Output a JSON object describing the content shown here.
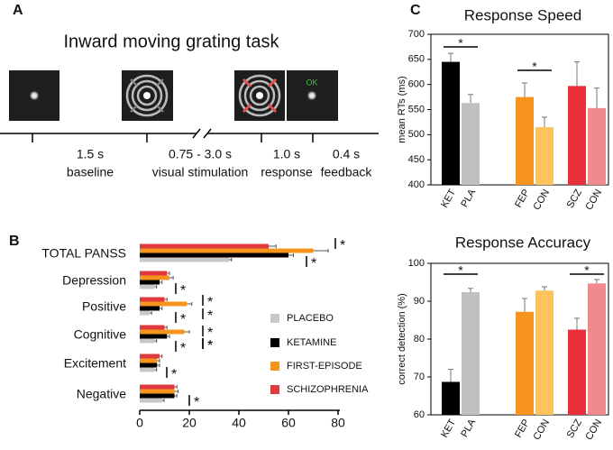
{
  "panel_labels": [
    "A",
    "B",
    "C"
  ],
  "timeline": {
    "title": "Inward moving grating task",
    "screen_text": "OK",
    "phases": [
      {
        "duration": "1.5 s",
        "label": "baseline"
      },
      {
        "duration": "0.75 - 3.0 s",
        "label": "visual stimulation"
      },
      {
        "duration": "1.0 s",
        "label": "response"
      },
      {
        "duration": "0.4 s",
        "label": "feedback"
      }
    ]
  },
  "chart_data": [
    {
      "type": "barh",
      "categories": [
        "TOTAL PANSS",
        "Depression",
        "Positive",
        "Cognitive",
        "Excitement",
        "Negative"
      ],
      "series": [
        {
          "name": "PLACEBO",
          "color": "#c8c8c8",
          "values": [
            36,
            6,
            4,
            6,
            6,
            9
          ],
          "errors": [
            1,
            0.8,
            0.8,
            0.8,
            0.8,
            0.8
          ]
        },
        {
          "name": "KETAMINE",
          "color": "#000000",
          "values": [
            60,
            8,
            8,
            11,
            7,
            14
          ],
          "errors": [
            2,
            1,
            1,
            1,
            1,
            1
          ]
        },
        {
          "name": "FIRST-EPISODE",
          "color": "#f7941d",
          "values": [
            70,
            12,
            19,
            18,
            7,
            14
          ],
          "errors": [
            6,
            1.5,
            2,
            2,
            1,
            1.5
          ]
        },
        {
          "name": "SCHIZOPHRENIA",
          "color": "#e03a3e",
          "values": [
            52,
            11,
            10,
            10,
            8,
            14
          ],
          "errors": [
            3,
            1,
            1,
            1,
            1,
            1
          ]
        }
      ],
      "xlim": [
        0,
        80
      ],
      "xticks": [
        0,
        20,
        40,
        60,
        80
      ],
      "annotations": [
        "*",
        "*",
        "*",
        "*",
        "*",
        "*",
        "*",
        "*",
        "*",
        "*",
        "*",
        "*"
      ]
    },
    {
      "type": "bar",
      "title": "Response Speed",
      "y_label": "mean RTs (ms)",
      "categories": [
        "KET",
        "PLA",
        "FEP",
        "CON",
        "SCZ",
        "CON"
      ],
      "values": [
        645,
        563,
        575,
        515,
        597,
        553
      ],
      "errors": [
        17,
        17,
        28,
        20,
        48,
        40
      ],
      "colors": [
        "#000000",
        "#c0c0c0",
        "#f7941d",
        "#fdc35c",
        "#e8303a",
        "#f08a8e"
      ],
      "ylim": [
        400,
        700
      ],
      "yticks": [
        400,
        450,
        500,
        550,
        600,
        650,
        700
      ],
      "annotations": [
        "*",
        "*"
      ]
    },
    {
      "type": "bar",
      "title": "Response Accuracy",
      "y_label": "correct detection (%)",
      "categories": [
        "KET",
        "PLA",
        "FEP",
        "CON",
        "SCZ",
        "CON"
      ],
      "values": [
        68.7,
        92.4,
        87.2,
        92.8,
        82.5,
        94.7
      ],
      "errors": [
        3.3,
        1,
        3.5,
        1,
        3,
        1
      ],
      "colors": [
        "#000000",
        "#c0c0c0",
        "#f7941d",
        "#fdc35c",
        "#e8303a",
        "#f08a8e"
      ],
      "ylim": [
        60,
        100
      ],
      "yticks": [
        60,
        70,
        80,
        90,
        100
      ],
      "annotations": [
        "*",
        "*"
      ]
    }
  ]
}
